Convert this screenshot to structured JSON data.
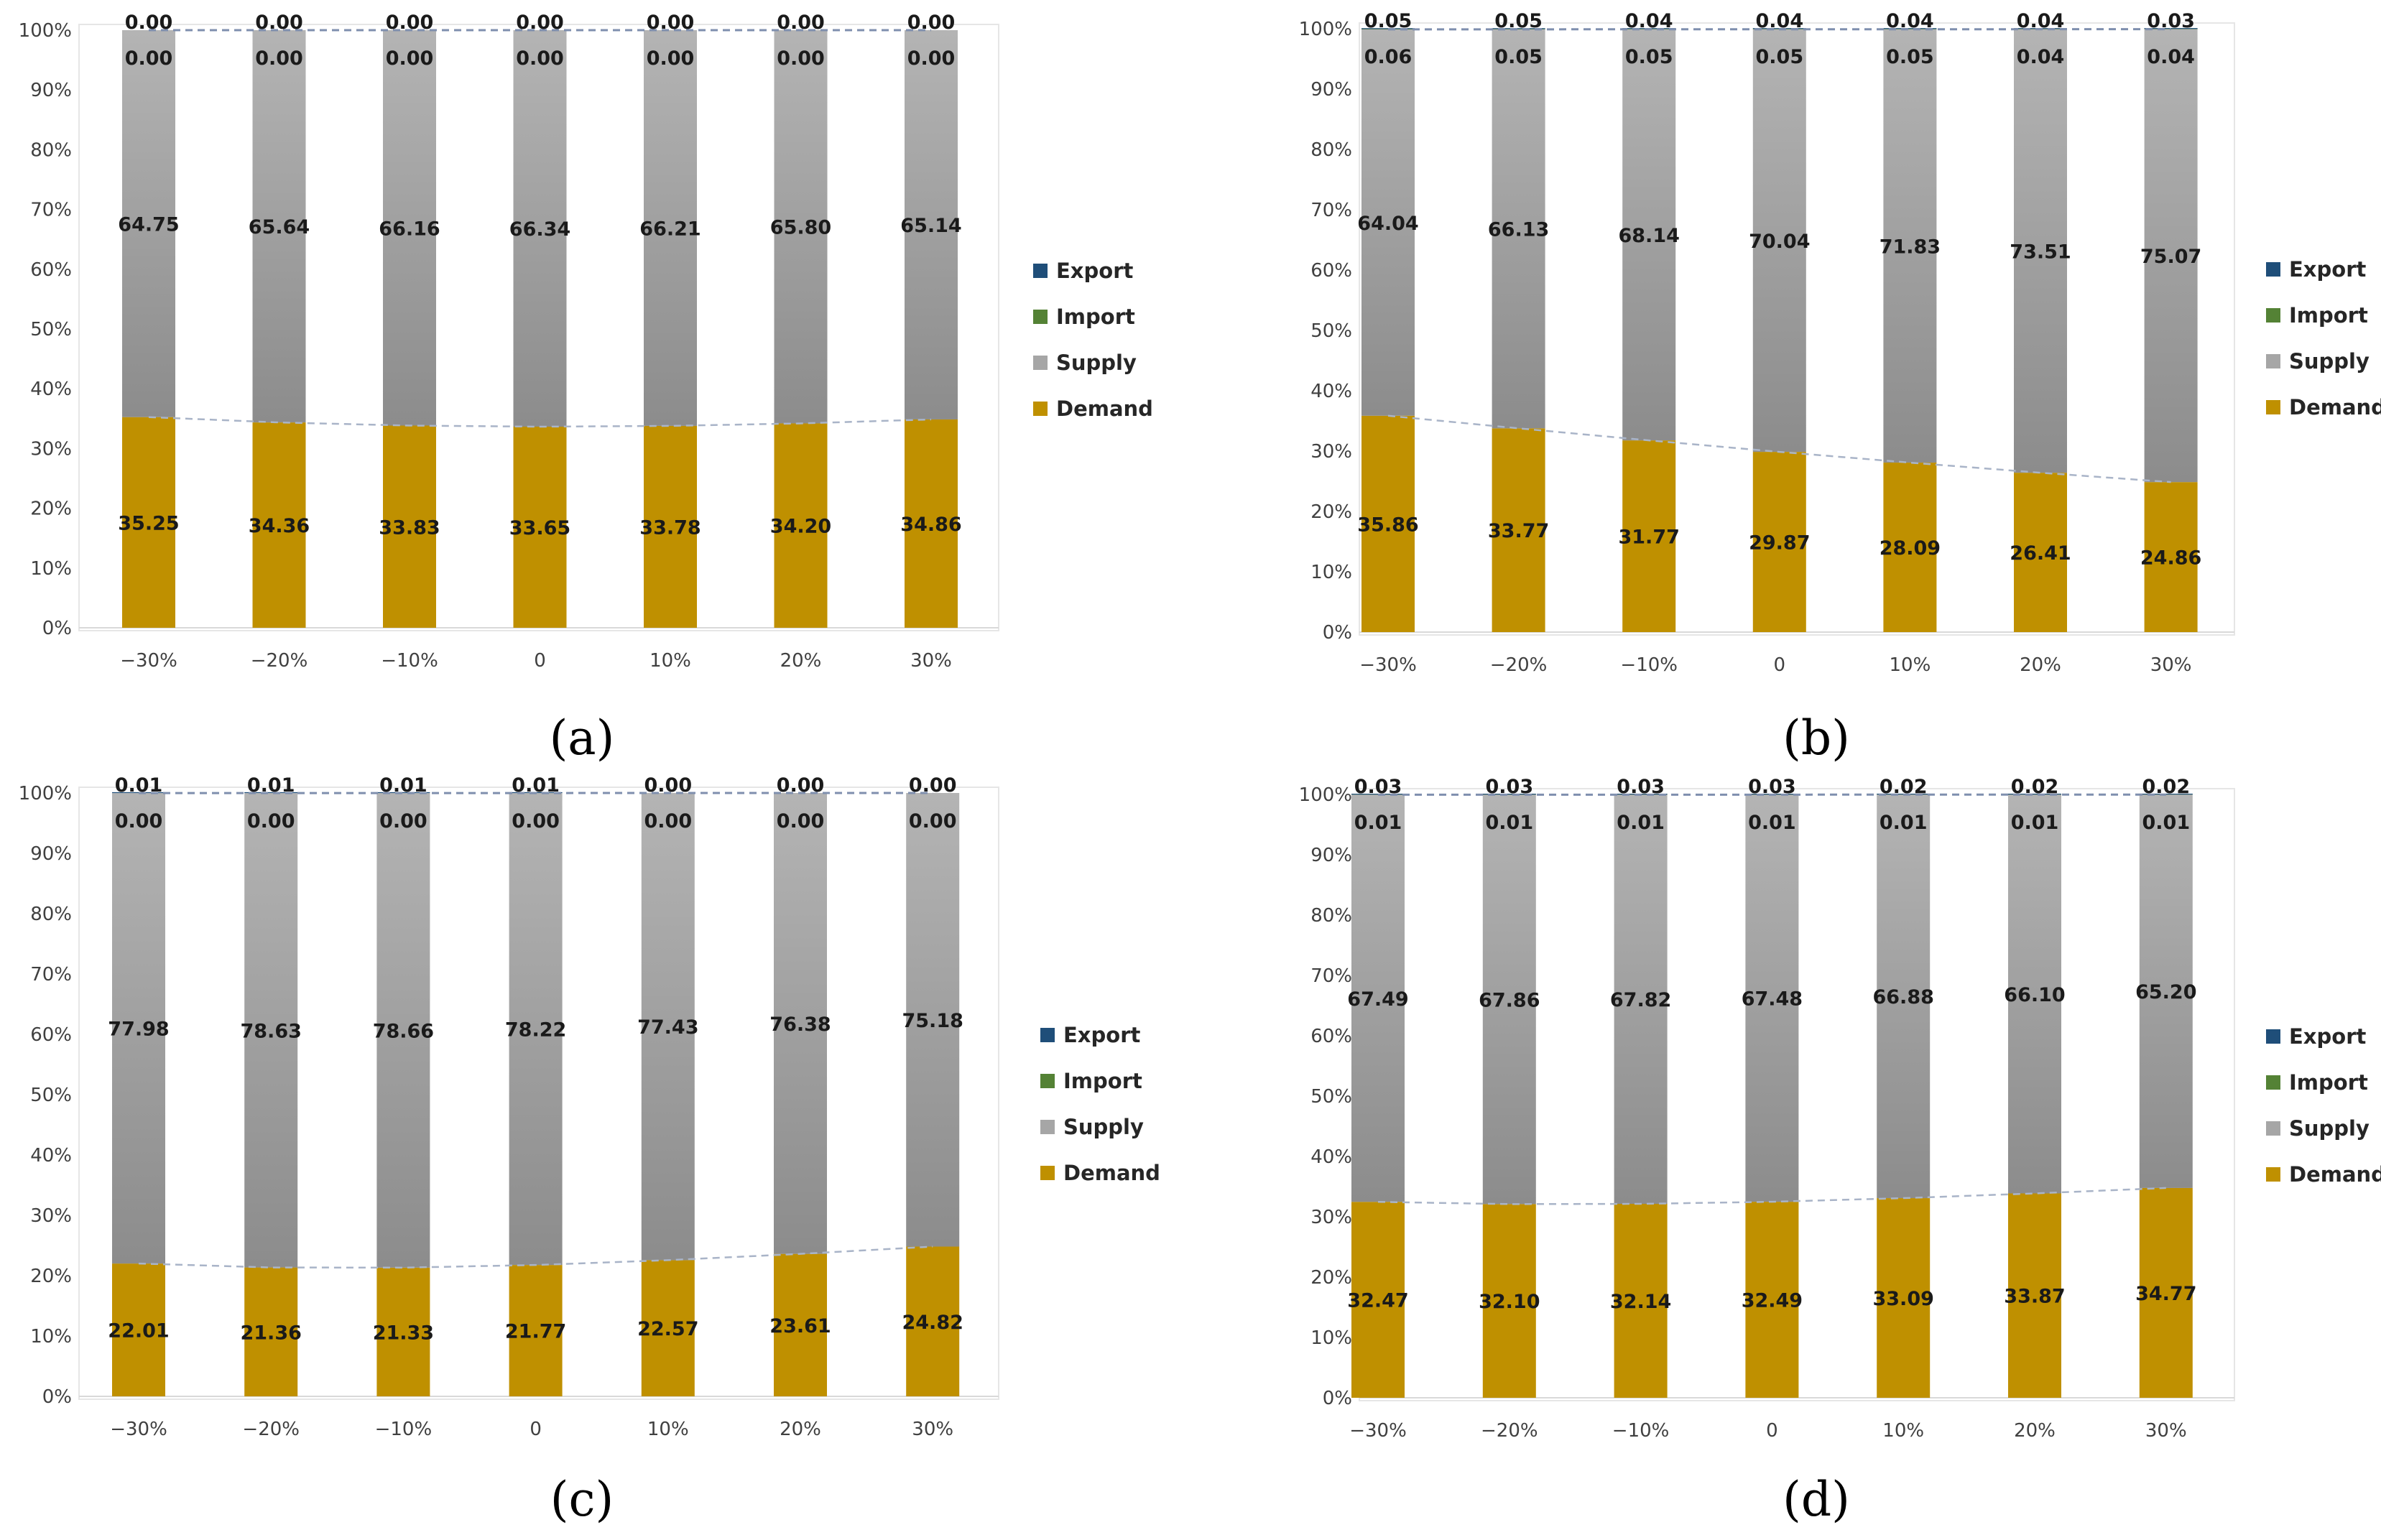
{
  "chart_data": [
    {
      "panel": "a",
      "type": "bar",
      "stacked": "percent",
      "categories": [
        "−30%",
        "−20%",
        "−10%",
        "0",
        "10%",
        "20%",
        "30%"
      ],
      "yticks": [
        "0%",
        "10%",
        "20%",
        "30%",
        "40%",
        "50%",
        "60%",
        "70%",
        "80%",
        "90%",
        "100%"
      ],
      "ylim": [
        0,
        100
      ],
      "series": [
        {
          "name": "Demand",
          "color": "#bf9000",
          "values": [
            35.25,
            34.36,
            33.83,
            33.65,
            33.78,
            34.2,
            34.86
          ],
          "labels": [
            "35.25",
            "34.36",
            "33.83",
            "33.65",
            "33.78",
            "34.20",
            "34.86"
          ]
        },
        {
          "name": "Supply",
          "color": "#a6a6a6",
          "values": [
            64.75,
            65.64,
            66.16,
            66.34,
            66.21,
            65.8,
            65.14
          ],
          "labels": [
            "64.75",
            "65.64",
            "66.16",
            "66.34",
            "66.21",
            "65.80",
            "65.14"
          ]
        },
        {
          "name": "Import",
          "color": "#548235",
          "values": [
            0.0,
            0.0,
            0.0,
            0.0,
            0.0,
            0.0,
            0.0
          ],
          "labels": [
            "0.00",
            "0.00",
            "0.00",
            "0.00",
            "0.00",
            "0.00",
            "0.00"
          ]
        },
        {
          "name": "Export",
          "color": "#1f4e79",
          "values": [
            0.0,
            0.0,
            0.0,
            0.0,
            0.0,
            0.0,
            0.0
          ],
          "labels": [
            "0.00",
            "0.00",
            "0.00",
            "0.00",
            "0.00",
            "0.00",
            "0.00"
          ]
        }
      ],
      "legend": [
        "Export",
        "Import",
        "Supply",
        "Demand"
      ],
      "legend_position": "right",
      "caption": "(a)"
    },
    {
      "panel": "b",
      "type": "bar",
      "stacked": "percent",
      "categories": [
        "−30%",
        "−20%",
        "−10%",
        "0",
        "10%",
        "20%",
        "30%"
      ],
      "yticks": [
        "0%",
        "10%",
        "20%",
        "30%",
        "40%",
        "50%",
        "60%",
        "70%",
        "80%",
        "90%",
        "100%"
      ],
      "ylim": [
        0,
        100
      ],
      "series": [
        {
          "name": "Demand",
          "color": "#bf9000",
          "values": [
            35.86,
            33.77,
            31.77,
            29.87,
            28.09,
            26.41,
            24.86
          ],
          "labels": [
            "35.86",
            "33.77",
            "31.77",
            "29.87",
            "28.09",
            "26.41",
            "24.86"
          ]
        },
        {
          "name": "Supply",
          "color": "#a6a6a6",
          "values": [
            64.04,
            66.13,
            68.14,
            70.04,
            71.83,
            73.51,
            75.07
          ],
          "labels": [
            "64.04",
            "66.13",
            "68.14",
            "70.04",
            "71.83",
            "73.51",
            "75.07"
          ]
        },
        {
          "name": "Import",
          "color": "#548235",
          "values": [
            0.06,
            0.05,
            0.05,
            0.05,
            0.05,
            0.04,
            0.04
          ],
          "labels": [
            "0.06",
            "0.05",
            "0.05",
            "0.05",
            "0.05",
            "0.04",
            "0.04"
          ]
        },
        {
          "name": "Export",
          "color": "#1f4e79",
          "values": [
            0.05,
            0.05,
            0.04,
            0.04,
            0.04,
            0.04,
            0.03
          ],
          "labels": [
            "0.05",
            "0.05",
            "0.04",
            "0.04",
            "0.04",
            "0.04",
            "0.03"
          ]
        }
      ],
      "legend": [
        "Export",
        "Import",
        "Supply",
        "Demand"
      ],
      "legend_position": "right",
      "caption": "(b)"
    },
    {
      "panel": "c",
      "type": "bar",
      "stacked": "percent",
      "categories": [
        "−30%",
        "−20%",
        "−10%",
        "0",
        "10%",
        "20%",
        "30%"
      ],
      "yticks": [
        "0%",
        "10%",
        "20%",
        "30%",
        "40%",
        "50%",
        "60%",
        "70%",
        "80%",
        "90%",
        "100%"
      ],
      "ylim": [
        0,
        100
      ],
      "series": [
        {
          "name": "Demand",
          "color": "#bf9000",
          "values": [
            22.01,
            21.36,
            21.33,
            21.77,
            22.57,
            23.61,
            24.82
          ],
          "labels": [
            "22.01",
            "21.36",
            "21.33",
            "21.77",
            "22.57",
            "23.61",
            "24.82"
          ]
        },
        {
          "name": "Supply",
          "color": "#a6a6a6",
          "values": [
            77.98,
            78.63,
            78.66,
            78.22,
            77.43,
            76.38,
            75.18
          ],
          "labels": [
            "77.98",
            "78.63",
            "78.66",
            "78.22",
            "77.43",
            "76.38",
            "75.18"
          ]
        },
        {
          "name": "Import",
          "color": "#548235",
          "values": [
            0.0,
            0.0,
            0.0,
            0.0,
            0.0,
            0.0,
            0.0
          ],
          "labels": [
            "0.00",
            "0.00",
            "0.00",
            "0.00",
            "0.00",
            "0.00",
            "0.00"
          ]
        },
        {
          "name": "Export",
          "color": "#1f4e79",
          "values": [
            0.01,
            0.01,
            0.01,
            0.01,
            0.0,
            0.0,
            0.0
          ],
          "labels": [
            "0.01",
            "0.01",
            "0.01",
            "0.01",
            "0.00",
            "0.00",
            "0.00"
          ]
        }
      ],
      "legend": [
        "Export",
        "Import",
        "Supply",
        "Demand"
      ],
      "legend_position": "right",
      "caption": "(c)"
    },
    {
      "panel": "d",
      "type": "bar",
      "stacked": "percent",
      "categories": [
        "−30%",
        "−20%",
        "−10%",
        "0",
        "10%",
        "20%",
        "30%"
      ],
      "yticks": [
        "0%",
        "10%",
        "20%",
        "30%",
        "40%",
        "50%",
        "60%",
        "70%",
        "80%",
        "90%",
        "100%"
      ],
      "ylim": [
        0,
        100
      ],
      "series": [
        {
          "name": "Demand",
          "color": "#bf9000",
          "values": [
            32.47,
            32.1,
            32.14,
            32.49,
            33.09,
            33.87,
            34.77
          ],
          "labels": [
            "32.47",
            "32.10",
            "32.14",
            "32.49",
            "33.09",
            "33.87",
            "34.77"
          ]
        },
        {
          "name": "Supply",
          "color": "#a6a6a6",
          "values": [
            67.49,
            67.86,
            67.82,
            67.48,
            66.88,
            66.1,
            65.2
          ],
          "labels": [
            "67.49",
            "67.86",
            "67.82",
            "67.48",
            "66.88",
            "66.10",
            "65.20"
          ]
        },
        {
          "name": "Import",
          "color": "#548235",
          "values": [
            0.01,
            0.01,
            0.01,
            0.01,
            0.01,
            0.01,
            0.01
          ],
          "labels": [
            "0.01",
            "0.01",
            "0.01",
            "0.01",
            "0.01",
            "0.01",
            "0.01"
          ]
        },
        {
          "name": "Export",
          "color": "#1f4e79",
          "values": [
            0.03,
            0.03,
            0.03,
            0.03,
            0.02,
            0.02,
            0.02
          ],
          "labels": [
            "0.03",
            "0.03",
            "0.03",
            "0.03",
            "0.02",
            "0.02",
            "0.02"
          ]
        }
      ],
      "legend": [
        "Export",
        "Import",
        "Supply",
        "Demand"
      ],
      "legend_position": "right",
      "caption": "(d)"
    }
  ]
}
